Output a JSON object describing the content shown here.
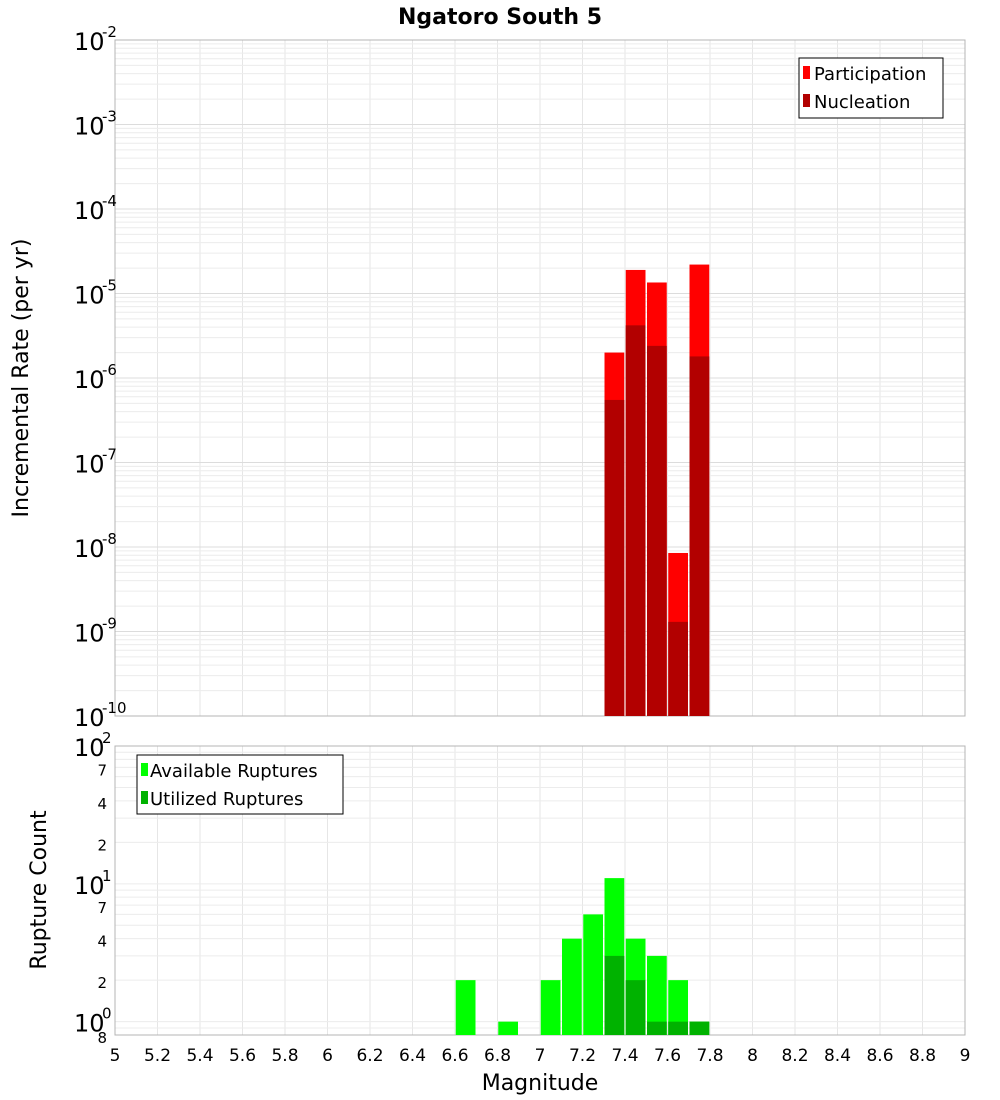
{
  "chart_data": [
    {
      "type": "bar",
      "title": "Ngatoro South 5",
      "xlabel": "Magnitude",
      "ylabel": "Incremental Rate (per yr)",
      "yscale": "log",
      "ylim": [
        1e-10,
        0.01
      ],
      "xlim": [
        5,
        9
      ],
      "grid": true,
      "legend_position": "top-right",
      "x": [
        7.35,
        7.45,
        7.55,
        7.65,
        7.75
      ],
      "series": [
        {
          "name": "Participation",
          "color": "#ff0000",
          "values": [
            2e-06,
            1.9e-05,
            1.35e-05,
            8.5e-09,
            2.2e-05
          ]
        },
        {
          "name": "Nucleation",
          "color": "#b20000",
          "values": [
            5.5e-07,
            4.2e-06,
            2.4e-06,
            1.3e-09,
            1.8e-06
          ]
        }
      ],
      "y_ticks": [
        {
          "base": "10",
          "exp": "-10"
        },
        {
          "base": "10",
          "exp": "-9"
        },
        {
          "base": "10",
          "exp": "-8"
        },
        {
          "base": "10",
          "exp": "-7"
        },
        {
          "base": "10",
          "exp": "-6"
        },
        {
          "base": "10",
          "exp": "-5"
        },
        {
          "base": "10",
          "exp": "-4"
        },
        {
          "base": "10",
          "exp": "-3"
        },
        {
          "base": "10",
          "exp": "-2"
        }
      ]
    },
    {
      "type": "bar",
      "xlabel": "Magnitude",
      "ylabel": "Rupture Count",
      "yscale": "log",
      "ylim": [
        0.8,
        100
      ],
      "xlim": [
        5,
        9
      ],
      "grid": true,
      "legend_position": "top-left",
      "x": [
        6.65,
        6.85,
        7.05,
        7.15,
        7.25,
        7.35,
        7.45,
        7.55,
        7.65,
        7.75
      ],
      "series": [
        {
          "name": "Available Ruptures",
          "color": "#00ff00",
          "values": [
            2,
            1,
            2,
            4,
            6,
            11,
            4,
            3,
            2,
            1
          ]
        },
        {
          "name": "Utilized Ruptures",
          "color": "#00b200",
          "values": [
            0,
            0,
            0,
            0,
            0,
            3,
            2,
            1,
            1,
            1
          ]
        }
      ],
      "y_ticks": [
        {
          "base": "10",
          "exp": "0"
        },
        {
          "base": "10",
          "exp": "1"
        },
        {
          "base": "10",
          "exp": "2"
        }
      ],
      "y_minor_labels": [
        {
          "label": "8",
          "value": 0.8
        },
        {
          "label": "2",
          "value": 2
        },
        {
          "label": "4",
          "value": 4
        },
        {
          "label": "7",
          "value": 7
        },
        {
          "label": "2",
          "value": 20
        },
        {
          "label": "4",
          "value": 40
        },
        {
          "label": "7",
          "value": 70
        }
      ],
      "x_ticks": [
        "5",
        "5.2",
        "5.4",
        "5.6",
        "5.8",
        "6",
        "6.2",
        "6.4",
        "6.6",
        "6.8",
        "7",
        "7.2",
        "7.4",
        "7.6",
        "7.8",
        "8",
        "8.2",
        "8.4",
        "8.6",
        "8.8",
        "9"
      ]
    }
  ]
}
